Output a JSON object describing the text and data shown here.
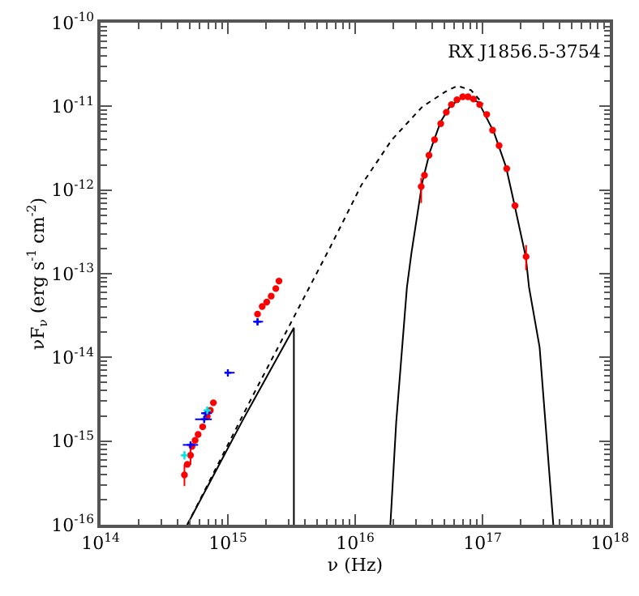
{
  "chart_data": {
    "type": "scatter",
    "title": "RX J1856.5-3754",
    "xlabel": "ν (Hz)",
    "ylabel": "νF$_{ν}$ (erg s$^{-1}$ cm$^{-2}$)",
    "log": "xy",
    "xlim": [
      100000000000000.0,
      1e+18
    ],
    "xticks": [
      {
        "value": 100000000000000.0,
        "label": "10$^{14}$"
      },
      {
        "value": 1000000000000000.0,
        "label": "10$^{15}$"
      },
      {
        "value": 1e+16,
        "label": "10$^{16}$"
      },
      {
        "value": 1e+17,
        "label": "10$^{17}$"
      },
      {
        "value": 1e+18,
        "label": "10$^{18}$"
      }
    ],
    "ylim": [
      1e-16,
      1e-10
    ],
    "yticks": [
      {
        "value": 1e-16,
        "label": "10$^{-16}$"
      },
      {
        "value": 1e-15,
        "label": "10$^{-15}$"
      },
      {
        "value": 1e-14,
        "label": "10$^{-14}$"
      },
      {
        "value": 1e-13,
        "label": "10$^{-13}$"
      },
      {
        "value": 1e-12,
        "label": "10$^{-12}$"
      },
      {
        "value": 1e-11,
        "label": "10$^{-11}$"
      },
      {
        "value": 1e-10,
        "label": "10$^{-10}$"
      }
    ],
    "series": [
      {
        "type": "line",
        "color": "#000000",
        "line_style": "dotted",
        "marker": "none",
        "x": [
          480000000000000.0,
          1620000000000000.0,
          3300000000000000.0,
          6400000000000000.0,
          1.12e+16,
          1.94e+16,
          3.37e+16,
          5.09e+16,
          6.34e+16,
          8.13e+16,
          1.01e+17
        ],
        "values": [
          1e-16,
          3.83e-15,
          3.03e-14,
          2.11e-13,
          1.15e-12,
          3.98e-12,
          9.9e-12,
          1.49e-11,
          1.76e-11,
          1.56e-11,
          1.07e-11
        ]
      },
      {
        "type": "line",
        "color": "#000000",
        "line_style": "solid",
        "marker": "none",
        "x": [
          480000000000000.0,
          1340000000000000.0,
          3300000000000000.0,
          3300000000000000.0
        ],
        "values": [
          1e-16,
          1.9e-15,
          2.26e-14,
          1e-16
        ]
      },
      {
        "type": "line",
        "color": "#000000",
        "line_style": "solid",
        "marker": "none",
        "x": [
          1.89e+16,
          2.1e+16,
          2.55e+16,
          2.77e+16,
          3.37e+16,
          3.86e+16,
          4.69e+16,
          5.53e+16,
          7.08e+16,
          9.33e+16,
          1.23e+17,
          1.53e+17,
          1.76e+17,
          2.19e+17,
          2.32e+17,
          2.81e+17,
          3.6e+17
        ],
        "values": [
          1e-16,
          1.67e-15,
          6.9e-14,
          1.79e-13,
          1.25e-12,
          2.86e-12,
          6.53e-12,
          9.9e-12,
          1.32e-11,
          1.12e-11,
          4.9e-12,
          1.89e-12,
          7.3e-13,
          1.58e-13,
          6.9e-14,
          1.32e-14,
          1e-16
        ]
      },
      {
        "color": "#ff0000",
        "marker": "circle",
        "x": [
          456000000000000.0,
          480000000000000.0,
          509000000000000.0,
          523000000000000.0,
          553000000000000.0,
          584000000000000.0,
          634000000000000.0,
          689000000000000.0,
          728000000000000.0,
          769000000000000.0,
          1710000000000000.0,
          1860000000000000.0,
          2020000000000000.0,
          2190000000000000.0,
          2380000000000000.0,
          2520000000000000.0,
          3.3e+16,
          3.5e+16,
          3.8e+16,
          4.2e+16,
          4.7e+16,
          5.2e+16,
          5.7e+16,
          6.3e+16,
          7e+16,
          7.7e+16,
          8.5e+16,
          9.5e+16,
          1.08e+17,
          1.2e+17,
          1.35e+17,
          1.55e+17,
          1.8e+17,
          2.2e+17
        ],
        "values": [
          3.94e-16,
          5.27e-16,
          6.75e-16,
          8.65e-16,
          1.02e-15,
          1.2e-15,
          1.48e-15,
          1.98e-15,
          2.33e-15,
          2.87e-15,
          3.29e-14,
          4.05e-14,
          4.58e-14,
          5.4e-14,
          6.64e-14,
          8.17e-14,
          1.1e-12,
          1.5e-12,
          2.6e-12,
          4e-12,
          6.2e-12,
          8.5e-12,
          1.05e-11,
          1.2e-11,
          1.3e-11,
          1.3e-11,
          1.22e-11,
          1.05e-11,
          8e-12,
          5.2e-12,
          3.4e-12,
          1.8e-12,
          6.5e-13,
          1.6e-13
        ],
        "errors": [
          [
            2.9e-16,
            5.2e-16
          ],
          null,
          [
            5.2e-16,
            8.5e-16
          ],
          null,
          null,
          null,
          null,
          null,
          null,
          null,
          null,
          null,
          null,
          null,
          null,
          null,
          [
            7e-13,
            1.4e-12
          ],
          null,
          null,
          null,
          null,
          null,
          null,
          null,
          null,
          null,
          null,
          null,
          null,
          null,
          null,
          null,
          null,
          [
            1.1e-13,
            2.2e-13
          ]
        ]
      },
      {
        "color": "#0000ff",
        "marker": "cross",
        "x": [
          509000000000000.0,
          652000000000000.0,
          670000000000000.0,
          1000000000000000.0,
          1710000000000000.0
        ],
        "values": [
          9e-16,
          1.82e-15,
          2.15e-15,
          6.56e-15,
          2.67e-14
        ],
        "xerrors": [
          [
            443000000000000.0,
            584000000000000.0
          ],
          [
            553000000000000.0,
            748000000000000.0
          ],
          [
            616000000000000.0,
            748000000000000.0
          ],
          [
            956000000000000.0,
            1130000000000000.0
          ],
          [
            1580000000000000.0,
            1890000000000000.0
          ]
        ],
        "errors": [
          [
            8.1e-16,
            9.9e-16
          ],
          [
            1.64e-15,
            2e-15
          ],
          [
            1.94e-15,
            2.37e-15
          ],
          [
            5.9e-15,
            7.2e-15
          ],
          [
            2.4e-14,
            2.94e-14
          ]
        ]
      },
      {
        "color": "#00e5e5",
        "marker": "cross",
        "x": [
          456000000000000.0,
          689000000000000.0
        ],
        "values": [
          6.75e-16,
          2.33e-15
        ],
        "xerrors": [
          [
            430000000000000.0,
            480000000000000.0
          ],
          [
            650000000000000.0,
            730000000000000.0
          ]
        ],
        "errors": [
          [
            6e-16,
            7.6e-16
          ],
          [
            2.1e-15,
            2.6e-15
          ]
        ]
      }
    ]
  }
}
